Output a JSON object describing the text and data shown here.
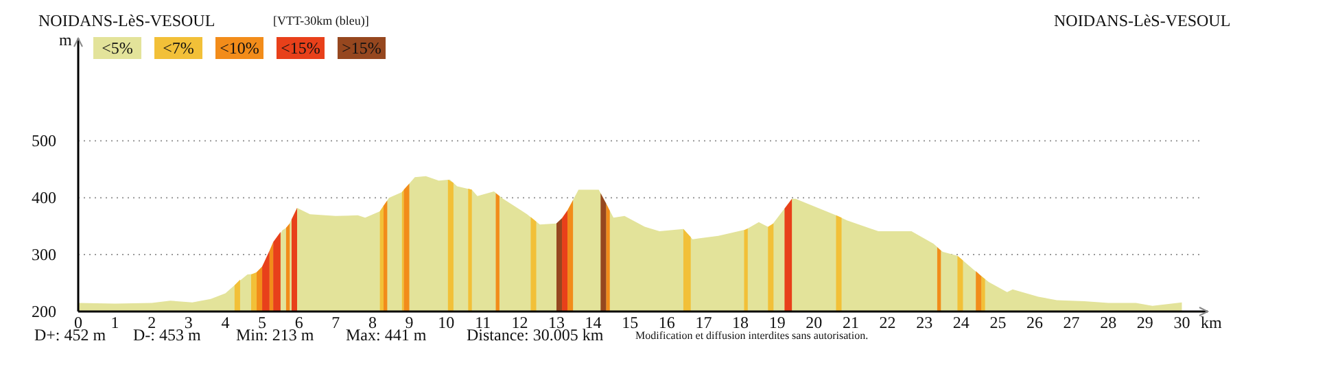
{
  "chart_data": {
    "type": "area",
    "title": "NOIDANS-LèS-VESOUL",
    "subtitle": "[VTT-30km (bleu)]",
    "xlabel": "km",
    "ylabel": "m",
    "annotations": [
      "NOIDANS-LèS-VESOUL",
      "D+: 452 m",
      "D-: 453 m",
      "Min: 213 m",
      "Max: 441 m",
      "Distance: 30.005 km",
      "Modification et diffusion interdites sans autorisation."
    ],
    "xlim": [
      0,
      30.7
    ],
    "xticks": [
      0,
      1,
      2,
      3,
      4,
      5,
      6,
      7,
      8,
      9,
      10,
      11,
      12,
      13,
      14,
      15,
      16,
      17,
      18,
      19,
      20,
      21,
      22,
      23,
      24,
      25,
      26,
      27,
      28,
      29,
      30
    ],
    "ylim": [
      200,
      680
    ],
    "yticks": [
      200,
      300,
      400,
      500
    ],
    "grid": "y",
    "legend": "top left",
    "series": [
      {
        "name": "<5%",
        "color": "#e3e39a",
        "x": [
          0,
          1,
          2,
          2.5,
          3.1,
          3.6,
          4.0,
          4.35,
          4.6,
          4.8,
          5.0,
          5.55,
          5.7,
          5.95,
          6.3,
          7.0,
          7.6,
          7.8,
          8.2,
          8.45,
          8.8,
          9.15,
          9.45,
          9.8,
          10.1,
          10.3,
          10.7,
          10.85,
          11.3,
          11.55,
          12.2,
          12.55,
          13.05,
          13.3,
          13.6,
          14.15,
          14.55,
          14.85,
          15.4,
          15.8,
          16.45,
          16.7,
          17.4,
          18.15,
          18.5,
          18.8,
          19.4,
          19.5,
          20.6,
          20.9,
          21.75,
          22.65,
          23.25,
          23.5,
          23.9,
          24.35,
          24.75,
          25.25,
          25.4,
          26.1,
          26.6,
          27.35,
          28,
          28.75,
          29.2,
          30
        ],
        "values": [
          215,
          214,
          215,
          219,
          216,
          222,
          232,
          252,
          265,
          266,
          279,
          343,
          349,
          382,
          371,
          368,
          369,
          365,
          376,
          400,
          410,
          436,
          438,
          430,
          432,
          420,
          414,
          403,
          411,
          398,
          371,
          353,
          355,
          378,
          414,
          414,
          365,
          368,
          349,
          341,
          345,
          327,
          333,
          344,
          357,
          347,
          398,
          398,
          369,
          360,
          341,
          341,
          319,
          305,
          298,
          273,
          252,
          234,
          239,
          226,
          220,
          218,
          215,
          215,
          210,
          216
        ]
      },
      {
        "name": "<7%",
        "color": "#f2c038",
        "x": [
          4.25,
          4.4,
          4.55,
          4.7,
          4.85,
          6.5,
          8.2,
          8.3,
          8.55,
          8.8,
          8.85,
          9.5,
          10.05,
          10.2,
          10.4,
          10.6,
          10.7,
          11.5,
          12.3,
          12.45,
          14.5,
          16.45,
          16.65,
          17.4,
          18.1,
          18.2,
          18.5,
          18.75,
          18.9,
          19.8,
          20.6,
          20.75,
          22.3,
          23.9,
          24.05,
          24.3,
          24.55,
          24.65
        ],
        "values": [
          246,
          256,
          null,
          265,
          269,
          null,
          376,
          386,
          null,
          410,
          414,
          null,
          432,
          426,
          null,
          416,
          414,
          null,
          366,
          358,
          null,
          345,
          331,
          null,
          343,
          346,
          null,
          349,
          355,
          null,
          369,
          365,
          null,
          298,
          290,
          null,
          262,
          257
        ]
      },
      {
        "name": "<10%",
        "color": "#f28c1a",
        "x": [
          4.85,
          5.0,
          5.1,
          5.2,
          5.3,
          5.5,
          5.65,
          5.75,
          7.0,
          8.3,
          8.4,
          8.6,
          8.85,
          9.0,
          10.0,
          11.35,
          11.45,
          12.5,
          13.3,
          13.45,
          13.9,
          14.35,
          14.45,
          19.0,
          23.35,
          23.45,
          23.9,
          24.4,
          24.55
        ],
        "values": [
          269,
          279,
          null,
          307,
          322,
          null,
          347,
          355,
          null,
          386,
          395,
          null,
          414,
          425,
          null,
          408,
          403,
          null,
          378,
          396,
          null,
          390,
          377,
          null,
          313,
          307,
          null,
          271,
          262
        ]
      },
      {
        "name": "<15%",
        "color": "#e8401a",
        "x": [
          5.0,
          5.2,
          5.25,
          5.3,
          5.5,
          5.6,
          5.8,
          5.95,
          10.0,
          13.15,
          13.3,
          16.0,
          19.2,
          19.4
        ],
        "values": [
          279,
          307,
          null,
          322,
          340,
          null,
          362,
          382,
          null,
          364,
          378,
          null,
          381,
          398
        ]
      },
      {
        "name": ">15%",
        "color": "#96471f",
        "x": [
          13.0,
          13.15,
          13.6,
          14.2,
          14.35
        ],
        "values": [
          355,
          364,
          null,
          408,
          390
        ]
      }
    ]
  }
}
